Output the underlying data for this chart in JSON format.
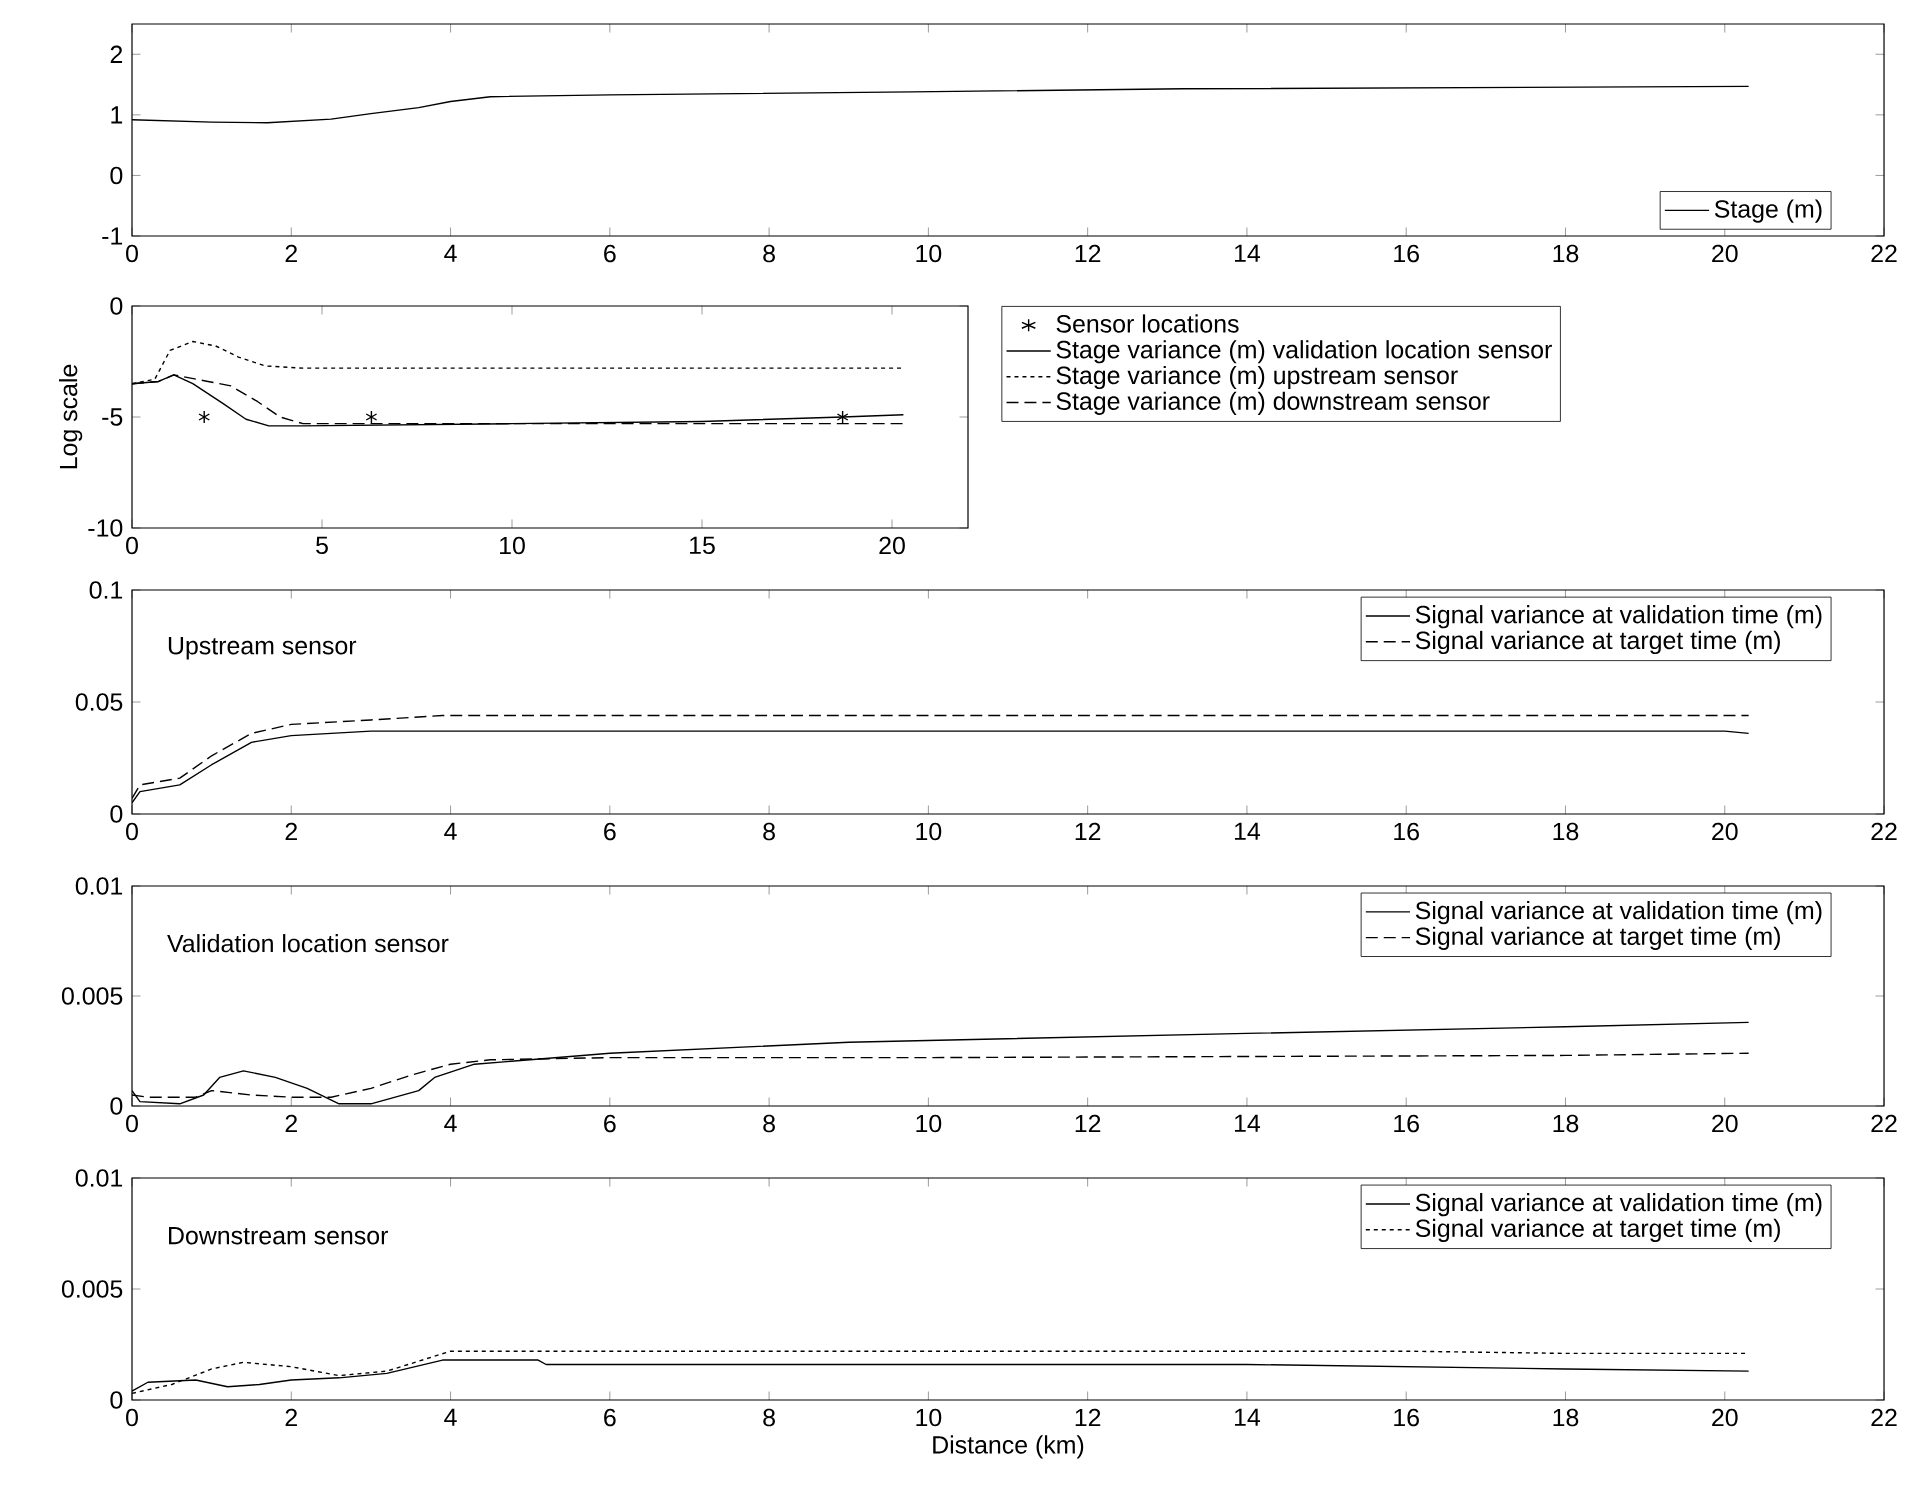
{
  "chart_data": [
    {
      "type": "line",
      "xlim": [
        0,
        22
      ],
      "xticks": [
        0,
        2,
        4,
        6,
        8,
        10,
        12,
        14,
        16,
        18,
        20,
        22
      ],
      "ylim": [
        -1,
        2.5
      ],
      "yticks": [
        -1,
        0,
        1,
        2
      ],
      "legend": "bottom right",
      "series": [
        {
          "name": "Stage (m)",
          "color": "#000000",
          "line_style": "solid",
          "x": [
            0,
            1,
            1.7,
            2.5,
            3,
            3.6,
            4,
            4.5,
            6,
            9.8,
            13.2,
            20.3
          ],
          "values": [
            0.92,
            0.88,
            0.87,
            0.93,
            1.02,
            1.12,
            1.22,
            1.3,
            1.33,
            1.38,
            1.43,
            1.47
          ]
        }
      ]
    },
    {
      "type": "line",
      "xlim": [
        0,
        22
      ],
      "xticks": [
        0,
        5,
        10,
        15,
        20
      ],
      "ylim": [
        -10,
        0
      ],
      "yticks": [
        -10,
        -5,
        0
      ],
      "ylabel": "Log scale",
      "legend": "right",
      "series": [
        {
          "name": "Sensor locations",
          "type": "scatter",
          "marker": "cross",
          "color": "#000000",
          "x": [
            1.9,
            6.3,
            18.7
          ],
          "values": [
            -5,
            -5,
            -5
          ]
        },
        {
          "name": "Stage variance (m) validation location sensor",
          "color": "#000000",
          "line_style": "solid",
          "x": [
            0,
            0.7,
            1.1,
            1.6,
            2.4,
            3.0,
            3.6,
            4.5,
            10,
            15,
            18.7,
            20.3
          ],
          "values": [
            -3.5,
            -3.4,
            -3.1,
            -3.5,
            -4.4,
            -5.1,
            -5.4,
            -5.4,
            -5.3,
            -5.2,
            -5.0,
            -4.9
          ]
        },
        {
          "name": "Stage variance (m) upstream sensor",
          "color": "#000000",
          "line_style": "dotted",
          "x": [
            0,
            0.6,
            1.0,
            1.6,
            2.2,
            2.8,
            3.5,
            4.5,
            10,
            20.3
          ],
          "values": [
            -3.5,
            -3.3,
            -2.0,
            -1.6,
            -1.8,
            -2.3,
            -2.7,
            -2.8,
            -2.8,
            -2.8
          ]
        },
        {
          "name": "Stage variance (m) downstream sensor",
          "color": "#000000",
          "line_style": "dashed",
          "x": [
            0,
            0.7,
            1.1,
            2,
            2.6,
            3.3,
            3.9,
            4.5,
            10,
            20.3
          ],
          "values": [
            -3.5,
            -3.4,
            -3.1,
            -3.4,
            -3.6,
            -4.3,
            -5.0,
            -5.3,
            -5.3,
            -5.3
          ]
        }
      ]
    },
    {
      "type": "line",
      "xlim": [
        0,
        22
      ],
      "xticks": [
        0,
        2,
        4,
        6,
        8,
        10,
        12,
        14,
        16,
        18,
        20,
        22
      ],
      "ylim": [
        0,
        0.1
      ],
      "yticks": [
        0,
        0.05,
        0.1
      ],
      "legend": "top right",
      "annotations": [
        "Upstream sensor"
      ],
      "series": [
        {
          "name": "Signal variance at validation time (m)",
          "color": "#000000",
          "line_style": "solid",
          "x": [
            0,
            0.1,
            0.6,
            1.0,
            1.5,
            2,
            3,
            20,
            20.3
          ],
          "values": [
            0.005,
            0.01,
            0.013,
            0.022,
            0.032,
            0.035,
            0.037,
            0.037,
            0.036
          ]
        },
        {
          "name": "Signal variance at target time (m)",
          "color": "#000000",
          "line_style": "dashed",
          "x": [
            0,
            0.1,
            0.6,
            1.0,
            1.5,
            2,
            3,
            3.9,
            20.3
          ],
          "values": [
            0.007,
            0.013,
            0.016,
            0.026,
            0.036,
            0.04,
            0.042,
            0.044,
            0.044
          ]
        }
      ]
    },
    {
      "type": "line",
      "xlim": [
        0,
        22
      ],
      "xticks": [
        0,
        2,
        4,
        6,
        8,
        10,
        12,
        14,
        16,
        18,
        20,
        22
      ],
      "ylim": [
        0,
        0.01
      ],
      "yticks": [
        0,
        0.005,
        0.01
      ],
      "legend": "top right",
      "annotations": [
        "Validation location sensor"
      ],
      "series": [
        {
          "name": "Signal variance at validation time (m)",
          "color": "#000000",
          "line_style": "solid",
          "x": [
            0,
            0.1,
            0.6,
            0.9,
            1.1,
            1.4,
            1.8,
            2.2,
            2.6,
            3.0,
            3.6,
            3.8,
            4.3,
            5,
            6,
            9,
            14,
            18,
            20.3
          ],
          "values": [
            0.0007,
            0.0002,
            0.0001,
            0.0005,
            0.0013,
            0.0016,
            0.0013,
            0.0008,
            0.0001,
            0.0001,
            0.0007,
            0.0013,
            0.0019,
            0.0021,
            0.0024,
            0.0029,
            0.0033,
            0.0036,
            0.0038
          ]
        },
        {
          "name": "Signal variance at target time (m)",
          "color": "#000000",
          "line_style": "dashed",
          "x": [
            0,
            0.2,
            0.8,
            1.0,
            1.5,
            2,
            2.5,
            3,
            3.5,
            4,
            4.5,
            6,
            10,
            18,
            20.3
          ],
          "values": [
            0.0005,
            0.0004,
            0.0004,
            0.0007,
            0.0005,
            0.0004,
            0.0004,
            0.0008,
            0.0014,
            0.0019,
            0.0021,
            0.0022,
            0.0022,
            0.0023,
            0.0024
          ]
        }
      ]
    },
    {
      "type": "line",
      "xlim": [
        0,
        22
      ],
      "xticks": [
        0,
        2,
        4,
        6,
        8,
        10,
        12,
        14,
        16,
        18,
        20,
        22
      ],
      "ylim": [
        0,
        0.01
      ],
      "yticks": [
        0,
        0.005,
        0.01
      ],
      "legend": "top right",
      "xlabel": "Distance (km)",
      "annotations": [
        "Downstream sensor"
      ],
      "series": [
        {
          "name": "Signal variance at validation time (m)",
          "color": "#000000",
          "line_style": "solid",
          "x": [
            0,
            0.2,
            0.8,
            1.2,
            1.6,
            2,
            2.6,
            3.2,
            3.9,
            5.1,
            5.2,
            14,
            18,
            20.3
          ],
          "values": [
            0.0004,
            0.0008,
            0.0009,
            0.0006,
            0.0007,
            0.0009,
            0.001,
            0.0012,
            0.0018,
            0.0018,
            0.0016,
            0.0016,
            0.0014,
            0.0013
          ]
        },
        {
          "name": "Signal variance at target time (m)",
          "color": "#000000",
          "line_style": "dotted",
          "x": [
            0,
            0.5,
            1,
            1.4,
            2,
            2.6,
            3.2,
            4,
            10,
            16,
            18,
            20.3
          ],
          "values": [
            0.0003,
            0.0007,
            0.0014,
            0.0017,
            0.0015,
            0.0011,
            0.0013,
            0.0022,
            0.0022,
            0.0022,
            0.0021,
            0.0021
          ]
        }
      ]
    }
  ]
}
